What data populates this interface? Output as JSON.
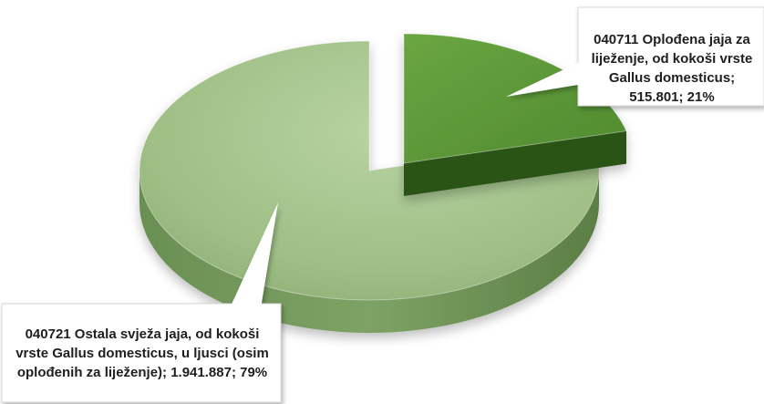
{
  "chart_data": {
    "type": "pie",
    "style": "3d-exploded",
    "series": [
      {
        "values": [
          515801,
          1941887
        ],
        "percent": [
          21,
          79
        ]
      }
    ],
    "slices": [
      {
        "label": "040711 Oplođena jaja za liježenje, od kokoši vrste Gallus domesticus",
        "value": 515801,
        "value_text": "515.801",
        "percent": 21,
        "color": "#5f9a3b",
        "label_text": "040711 Oplođena jaja za\nliježenje, od kokoši vrste\nGallus domesticus;\n515.801; 21%"
      },
      {
        "label": "040721 Ostala svježa jaja, od kokoši vrste Gallus domesticus, u ljusci (osim oplođenih za liježenje)",
        "value": 1941887,
        "value_text": "1.941.887",
        "percent": 79,
        "color": "#a4c48c",
        "label_text": "040721 Ostala svježa jaja, od kokoši\nvrste Gallus domesticus, u ljusci (osim\noplođenih za liježenje); 1.941.887; 79%"
      }
    ],
    "title": "",
    "legend": "none",
    "data_labels": "callouts"
  }
}
